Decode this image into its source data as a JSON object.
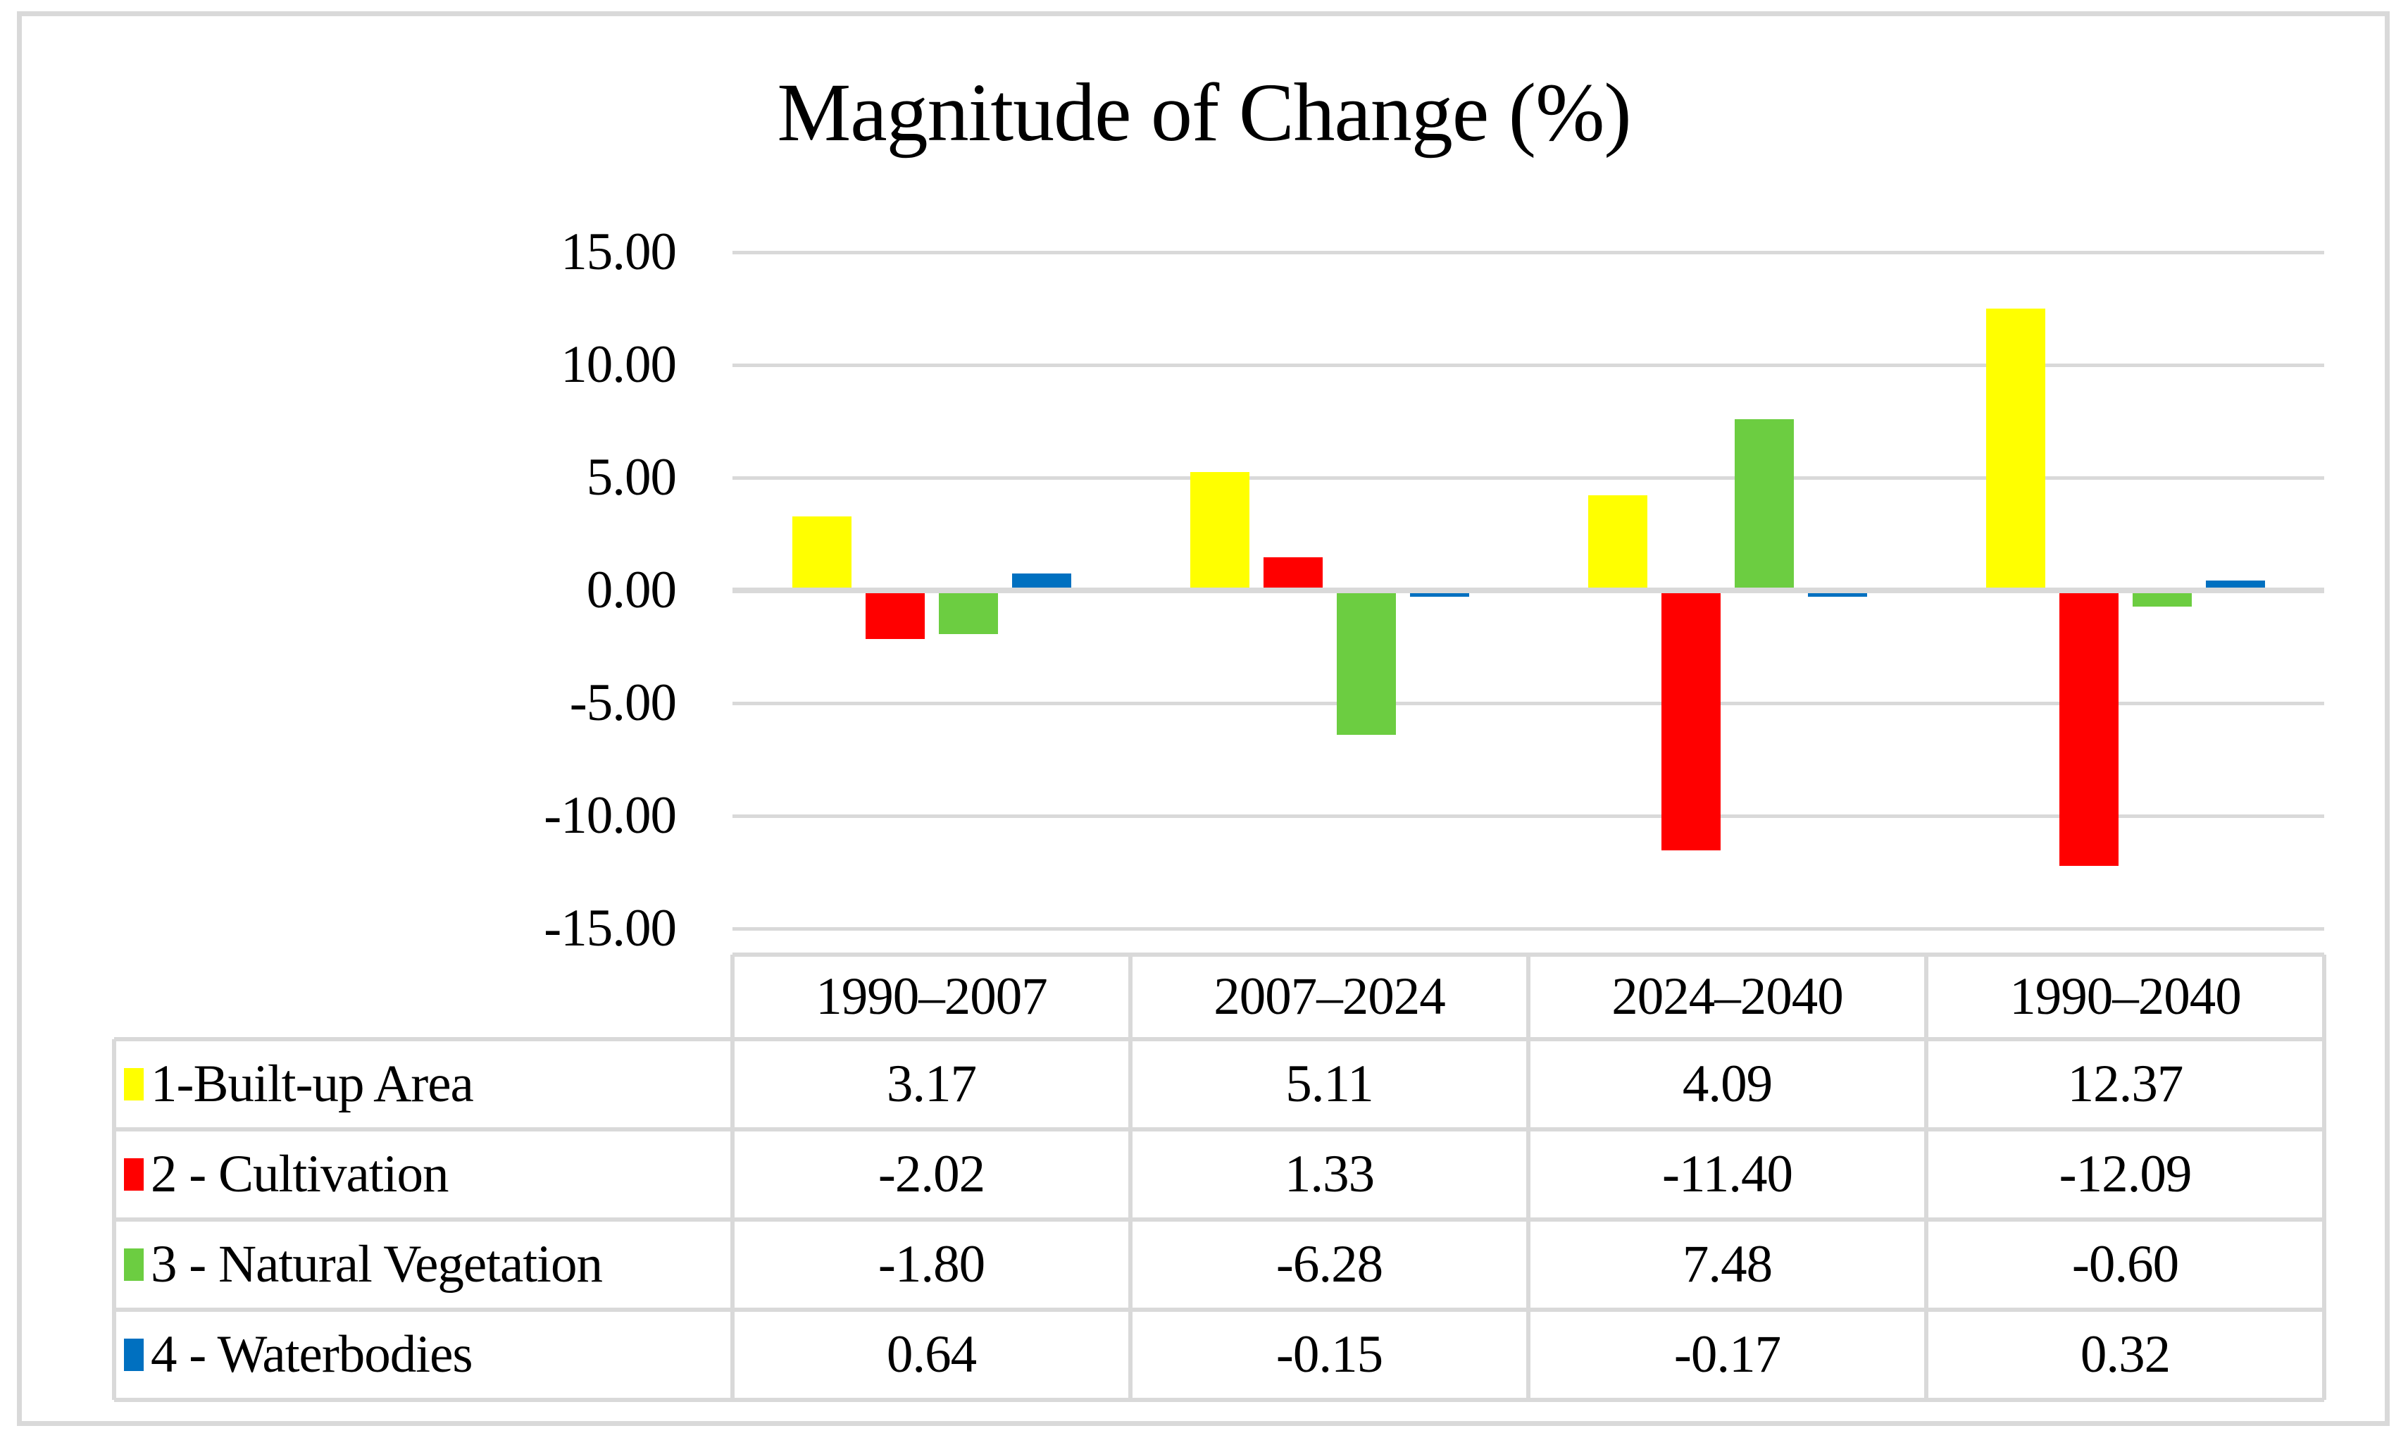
{
  "title": "Magnitude of Change (%)",
  "colors": {
    "grid_and_border": "#d9d9d9",
    "series1": "#ffff00",
    "series2": "#ff0000",
    "series3": "#6ccd41",
    "series4": "#0070c0",
    "text": "#000000",
    "background": "#ffffff"
  },
  "chart_data": {
    "type": "bar",
    "title": "Magnitude of Change (%)",
    "categories": [
      "1990–2007",
      "2007–2024",
      "2024–2040",
      "1990–2040"
    ],
    "series": [
      {
        "name": "1-Built-up Area",
        "color": "#ffff00",
        "values": [
          3.17,
          5.11,
          4.09,
          12.37
        ],
        "display": [
          "3.17",
          "5.11",
          "4.09",
          "12.37"
        ]
      },
      {
        "name": "2 - Cultivation",
        "color": "#ff0000",
        "values": [
          -2.02,
          1.33,
          -11.4,
          -12.09
        ],
        "display": [
          "-2.02",
          "1.33",
          "-11.40",
          "-12.09"
        ]
      },
      {
        "name": "3 - Natural Vegetation",
        "color": "#6ccd41",
        "values": [
          -1.8,
          -6.28,
          7.48,
          -0.6
        ],
        "display": [
          "-1.80",
          "-6.28",
          "7.48",
          "-0.60"
        ]
      },
      {
        "name": "4 - Waterbodies",
        "color": "#0070c0",
        "values": [
          0.64,
          -0.15,
          -0.17,
          0.32
        ],
        "display": [
          "0.64",
          "-0.15",
          "-0.17",
          "0.32"
        ]
      }
    ],
    "ylim": [
      -15,
      15
    ],
    "ytick_step": 5,
    "ytick_labels": [
      "15.00",
      "10.00",
      "5.00",
      "0.00",
      "-5.00",
      "-10.00",
      "-15.00"
    ],
    "grid": true,
    "legend_position": "data-table-left-column",
    "xlabel": "",
    "ylabel": ""
  }
}
